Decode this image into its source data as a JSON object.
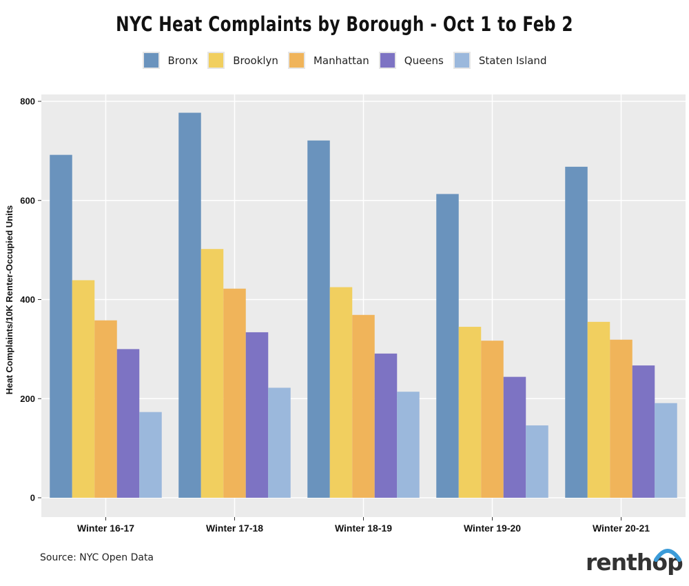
{
  "chart_data": {
    "type": "bar",
    "title": "NYC Heat Complaints by Borough - Oct 1 to Feb 2",
    "xlabel": "",
    "ylabel": "Heat Complaints/10K Renter-Occupied Units",
    "ylim": [
      0,
      830
    ],
    "yticks": [
      0,
      200,
      400,
      600,
      800
    ],
    "grid": true,
    "legend_position": "top",
    "categories": [
      "Winter 16-17",
      "Winter 17-18",
      "Winter 18-19",
      "Winter 19-20",
      "Winter 20-21"
    ],
    "series": [
      {
        "name": "Bronx",
        "color": "#6a93bd",
        "values": [
          692,
          777,
          721,
          613,
          668
        ]
      },
      {
        "name": "Brooklyn",
        "color": "#f1cf5f",
        "values": [
          439,
          502,
          425,
          345,
          355
        ]
      },
      {
        "name": "Manhattan",
        "color": "#f0b45a",
        "values": [
          358,
          422,
          369,
          317,
          319
        ]
      },
      {
        "name": "Queens",
        "color": "#7d73c3",
        "values": [
          300,
          334,
          291,
          244,
          267
        ]
      },
      {
        "name": "Staten Island",
        "color": "#9bb8dc",
        "values": [
          173,
          222,
          214,
          146,
          191
        ]
      }
    ]
  },
  "source": "Source: NYC Open Data",
  "logo": {
    "text": "renthop",
    "arc_color": "#3b9bd8"
  },
  "colors": {
    "panel_background": "#ebebeb",
    "gridline": "#ffffff"
  }
}
